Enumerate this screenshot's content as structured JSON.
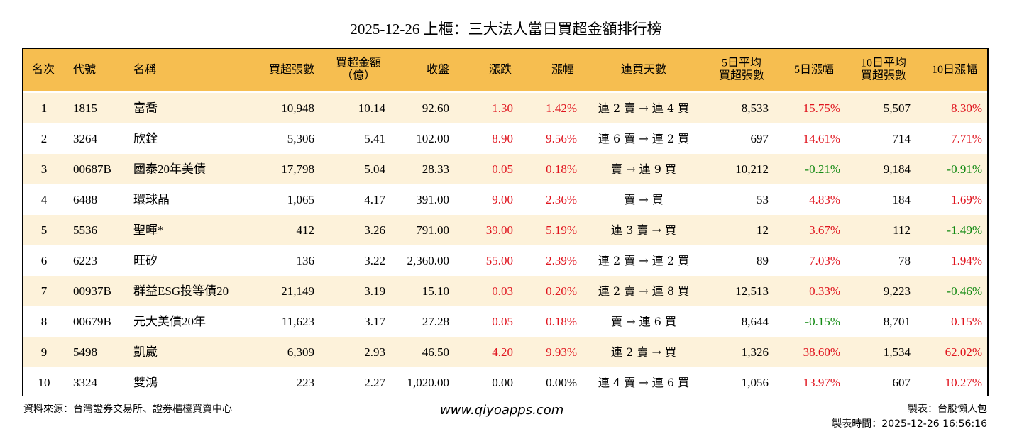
{
  "title": "2025-12-26 上櫃：三大法人當日買超金額排行榜",
  "table": {
    "header": [
      [
        "名次"
      ],
      [
        "代號"
      ],
      [
        "名稱"
      ],
      [
        "買超張數"
      ],
      [
        "買超金額",
        "（億）"
      ],
      [
        "收盤"
      ],
      [
        "漲跌"
      ],
      [
        "漲幅"
      ],
      [
        "連買天數"
      ],
      [
        "5日平均",
        "買超張數"
      ],
      [
        "5日漲幅"
      ],
      [
        "10日平均",
        "買超張數"
      ],
      [
        "10日漲幅"
      ]
    ],
    "rows": [
      [
        "1",
        "1815",
        "富喬",
        "10,948",
        "10.14",
        "92.60",
        "1.30",
        "1.42%",
        "連 2 賣 → 連 4 買",
        "8,533",
        "15.75%",
        "5,507",
        "8.30%"
      ],
      [
        "2",
        "3264",
        "欣銓",
        "5,306",
        "5.41",
        "102.00",
        "8.90",
        "9.56%",
        "連 6 賣 → 連 2 買",
        "697",
        "14.61%",
        "714",
        "7.71%"
      ],
      [
        "3",
        "00687B",
        "國泰20年美債",
        "17,798",
        "5.04",
        "28.33",
        "0.05",
        "0.18%",
        "賣 → 連 9 買",
        "10,212",
        "-0.21%",
        "9,184",
        "-0.91%"
      ],
      [
        "4",
        "6488",
        "環球晶",
        "1,065",
        "4.17",
        "391.00",
        "9.00",
        "2.36%",
        "賣 → 買",
        "53",
        "4.83%",
        "184",
        "1.69%"
      ],
      [
        "5",
        "5536",
        "聖暉*",
        "412",
        "3.26",
        "791.00",
        "39.00",
        "5.19%",
        "連 3 賣 → 買",
        "12",
        "3.67%",
        "112",
        "-1.49%"
      ],
      [
        "6",
        "6223",
        "旺矽",
        "136",
        "3.22",
        "2,360.00",
        "55.00",
        "2.39%",
        "連 2 賣 → 連 2 買",
        "89",
        "7.03%",
        "78",
        "1.94%"
      ],
      [
        "7",
        "00937B",
        "群益ESG投等債20",
        "21,149",
        "3.19",
        "15.10",
        "0.03",
        "0.20%",
        "連 2 賣 → 連 8 買",
        "12,513",
        "0.33%",
        "9,223",
        "-0.46%"
      ],
      [
        "8",
        "00679B",
        "元大美債20年",
        "11,623",
        "3.17",
        "27.28",
        "0.05",
        "0.18%",
        "賣 → 連 6 買",
        "8,644",
        "-0.15%",
        "8,701",
        "0.15%"
      ],
      [
        "9",
        "5498",
        "凱崴",
        "6,309",
        "2.93",
        "46.50",
        "4.20",
        "9.93%",
        "連 2 賣 → 買",
        "1,326",
        "38.60%",
        "1,534",
        "62.02%"
      ],
      [
        "10",
        "3324",
        "雙鴻",
        "223",
        "2.27",
        "1,020.00",
        "0.00",
        "0.00%",
        "連 4 賣 → 連 6 買",
        "1,056",
        "13.97%",
        "607",
        "10.27%"
      ]
    ]
  },
  "footer": {
    "source": "資料來源：台灣證券交易所、證券櫃檯買賣中心",
    "site": "www.qiyoapps.com",
    "maker": "製表：台股懶人包",
    "time": "製表時間：2025-12-26 16:56:16"
  }
}
